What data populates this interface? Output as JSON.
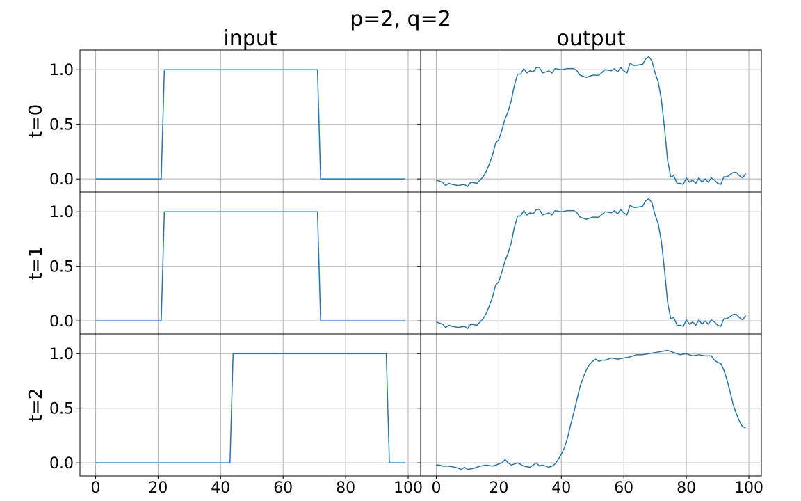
{
  "figure": {
    "suptitle": "p=2, q=2",
    "column_titles": [
      "input",
      "output"
    ],
    "row_labels": [
      "t=0",
      "t=1",
      "t=2"
    ],
    "line_color": "#1f77b4",
    "grid": true
  },
  "chart_data": [
    {
      "type": "line",
      "row": 0,
      "col": 0,
      "title": "input",
      "ylabel": "t=0",
      "xlim": [
        -5,
        104
      ],
      "ylim": [
        -0.12,
        1.18
      ],
      "xticks": [
        0,
        20,
        40,
        60,
        80,
        100
      ],
      "yticks": [
        0.0,
        0.5,
        1.0
      ],
      "xtick_labels": [],
      "ytick_labels": [
        "0.0",
        "0.5",
        "1.0"
      ],
      "series": [
        {
          "x": [
            0,
            21,
            22,
            71,
            72,
            99
          ],
          "y": [
            0,
            0,
            1,
            1,
            0,
            0
          ]
        }
      ]
    },
    {
      "type": "line",
      "row": 0,
      "col": 1,
      "title": "output",
      "ylabel": "",
      "xlim": [
        -5,
        104
      ],
      "ylim": [
        -0.12,
        1.18
      ],
      "xticks": [
        0,
        20,
        40,
        60,
        80,
        100
      ],
      "yticks": [
        0.0,
        0.5,
        1.0
      ],
      "xtick_labels": [],
      "ytick_labels": [],
      "series": [
        {
          "x": [
            0,
            2,
            3,
            4,
            5,
            7,
            9,
            10,
            11,
            13,
            14,
            15,
            16,
            17,
            18,
            19,
            20,
            21,
            22,
            23,
            24,
            25,
            26,
            27,
            28,
            29,
            30,
            31,
            32,
            33,
            34,
            36,
            37,
            38,
            40,
            42,
            44,
            45,
            46,
            48,
            50,
            52,
            54,
            56,
            57,
            58,
            59,
            60,
            61,
            62,
            63,
            64,
            66,
            67,
            68,
            69,
            70,
            71,
            72,
            73,
            74,
            75,
            76,
            77,
            78,
            79,
            80,
            81,
            82,
            83,
            84,
            85,
            86,
            87,
            88,
            89,
            90,
            91,
            92,
            93,
            94,
            95,
            96,
            97,
            98,
            99
          ],
          "y": [
            -0.01,
            -0.03,
            -0.06,
            -0.04,
            -0.05,
            -0.06,
            -0.05,
            -0.07,
            -0.03,
            -0.04,
            -0.01,
            0.02,
            0.07,
            0.14,
            0.22,
            0.33,
            0.36,
            0.45,
            0.55,
            0.62,
            0.72,
            0.86,
            0.96,
            0.96,
            1.01,
            0.97,
            0.99,
            0.98,
            1.02,
            1.02,
            0.97,
            0.99,
            0.97,
            1.01,
            1.0,
            1.01,
            1.01,
            0.99,
            0.95,
            0.93,
            0.95,
            0.95,
            1.0,
            0.99,
            1.01,
            0.98,
            1.02,
            0.99,
            0.97,
            1.06,
            1.04,
            1.04,
            1.05,
            1.1,
            1.12,
            1.08,
            0.97,
            0.89,
            0.73,
            0.47,
            0.17,
            0.02,
            0.03,
            -0.04,
            -0.04,
            -0.05,
            0.01,
            -0.03,
            -0.01,
            -0.04,
            0.01,
            -0.03,
            0.0,
            -0.03,
            0.01,
            -0.01,
            -0.04,
            -0.05,
            0.02,
            0.02,
            0.04,
            0.06,
            0.06,
            0.03,
            0.01,
            0.05
          ]
        }
      ]
    },
    {
      "type": "line",
      "row": 1,
      "col": 0,
      "title": "",
      "ylabel": "t=1",
      "xlim": [
        -5,
        104
      ],
      "ylim": [
        -0.12,
        1.18
      ],
      "xticks": [
        0,
        20,
        40,
        60,
        80,
        100
      ],
      "yticks": [
        0.0,
        0.5,
        1.0
      ],
      "xtick_labels": [],
      "ytick_labels": [
        "0.0",
        "0.5",
        "1.0"
      ],
      "series": [
        {
          "x": [
            0,
            21,
            22,
            71,
            72,
            99
          ],
          "y": [
            0,
            0,
            1,
            1,
            0,
            0
          ]
        }
      ]
    },
    {
      "type": "line",
      "row": 1,
      "col": 1,
      "title": "",
      "ylabel": "",
      "xlim": [
        -5,
        104
      ],
      "ylim": [
        -0.12,
        1.18
      ],
      "xticks": [
        0,
        20,
        40,
        60,
        80,
        100
      ],
      "yticks": [
        0.0,
        0.5,
        1.0
      ],
      "xtick_labels": [],
      "ytick_labels": [],
      "series": [
        {
          "x": [
            0,
            2,
            3,
            4,
            5,
            7,
            9,
            10,
            11,
            13,
            14,
            15,
            16,
            17,
            18,
            19,
            20,
            21,
            22,
            23,
            24,
            25,
            26,
            27,
            28,
            29,
            30,
            31,
            32,
            33,
            34,
            36,
            37,
            38,
            40,
            42,
            44,
            45,
            46,
            48,
            50,
            52,
            54,
            56,
            57,
            58,
            59,
            60,
            61,
            62,
            63,
            64,
            66,
            67,
            68,
            69,
            70,
            71,
            72,
            73,
            74,
            75,
            76,
            77,
            78,
            79,
            80,
            81,
            82,
            83,
            84,
            85,
            86,
            87,
            88,
            89,
            90,
            91,
            92,
            93,
            94,
            95,
            96,
            97,
            98,
            99
          ],
          "y": [
            -0.01,
            -0.03,
            -0.06,
            -0.04,
            -0.05,
            -0.06,
            -0.05,
            -0.07,
            -0.03,
            -0.04,
            -0.01,
            0.02,
            0.07,
            0.14,
            0.22,
            0.33,
            0.36,
            0.45,
            0.55,
            0.62,
            0.72,
            0.86,
            0.96,
            0.96,
            1.01,
            0.97,
            0.99,
            0.98,
            1.02,
            1.02,
            0.97,
            0.99,
            0.97,
            1.01,
            1.0,
            1.01,
            1.01,
            0.99,
            0.95,
            0.93,
            0.95,
            0.95,
            1.0,
            0.99,
            1.01,
            0.98,
            1.02,
            0.99,
            0.97,
            1.06,
            1.04,
            1.04,
            1.05,
            1.1,
            1.12,
            1.08,
            0.97,
            0.89,
            0.73,
            0.47,
            0.17,
            0.02,
            0.03,
            -0.04,
            -0.04,
            -0.05,
            0.01,
            -0.03,
            -0.01,
            -0.04,
            0.01,
            -0.03,
            0.0,
            -0.03,
            0.01,
            -0.01,
            -0.04,
            -0.05,
            0.02,
            0.02,
            0.04,
            0.06,
            0.06,
            0.03,
            0.01,
            0.05
          ]
        }
      ]
    },
    {
      "type": "line",
      "row": 2,
      "col": 0,
      "title": "",
      "ylabel": "t=2",
      "xlim": [
        -5,
        104
      ],
      "ylim": [
        -0.12,
        1.18
      ],
      "xticks": [
        0,
        20,
        40,
        60,
        80,
        100
      ],
      "yticks": [
        0.0,
        0.5,
        1.0
      ],
      "xtick_labels": [
        "0",
        "20",
        "40",
        "60",
        "80",
        "100"
      ],
      "ytick_labels": [
        "0.0",
        "0.5",
        "1.0"
      ],
      "series": [
        {
          "x": [
            0,
            43,
            44,
            93,
            94,
            99
          ],
          "y": [
            0,
            0,
            1,
            1,
            0,
            0
          ]
        }
      ]
    },
    {
      "type": "line",
      "row": 2,
      "col": 1,
      "title": "",
      "ylabel": "",
      "xlim": [
        -5,
        104
      ],
      "ylim": [
        -0.12,
        1.18
      ],
      "xticks": [
        0,
        20,
        40,
        60,
        80,
        100
      ],
      "yticks": [
        0.0,
        0.5,
        1.0
      ],
      "xtick_labels": [
        "0",
        "20",
        "40",
        "60",
        "80",
        "100"
      ],
      "ytick_labels": [],
      "series": [
        {
          "x": [
            0,
            1,
            2,
            4,
            6,
            7,
            8,
            9,
            10,
            12,
            14,
            16,
            18,
            20,
            21,
            22,
            23,
            24,
            26,
            28,
            30,
            31,
            32,
            33,
            34,
            36,
            37,
            38,
            39,
            40,
            41,
            42,
            43,
            44,
            45,
            46,
            47,
            48,
            49,
            50,
            51,
            52,
            53,
            54,
            56,
            58,
            60,
            62,
            64,
            66,
            68,
            70,
            72,
            74,
            76,
            78,
            80,
            82,
            84,
            86,
            88,
            89,
            90,
            91,
            92,
            93,
            94,
            95,
            96,
            97,
            98,
            99
          ],
          "y": [
            -0.02,
            -0.02,
            -0.03,
            -0.03,
            -0.04,
            -0.05,
            -0.06,
            -0.04,
            -0.06,
            -0.05,
            -0.03,
            -0.02,
            -0.03,
            -0.01,
            0.0,
            0.03,
            0.0,
            -0.02,
            0.0,
            -0.03,
            -0.04,
            -0.02,
            0.0,
            -0.03,
            -0.02,
            -0.04,
            -0.03,
            -0.01,
            0.03,
            0.08,
            0.14,
            0.23,
            0.35,
            0.46,
            0.58,
            0.7,
            0.78,
            0.85,
            0.9,
            0.93,
            0.95,
            0.93,
            0.94,
            0.94,
            0.96,
            0.95,
            0.96,
            0.97,
            0.99,
            0.99,
            1.0,
            1.01,
            1.02,
            1.03,
            1.01,
            0.99,
            1.0,
            0.98,
            0.99,
            0.98,
            0.98,
            0.94,
            0.92,
            0.91,
            0.85,
            0.76,
            0.65,
            0.53,
            0.45,
            0.38,
            0.33,
            0.32
          ]
        }
      ]
    }
  ]
}
